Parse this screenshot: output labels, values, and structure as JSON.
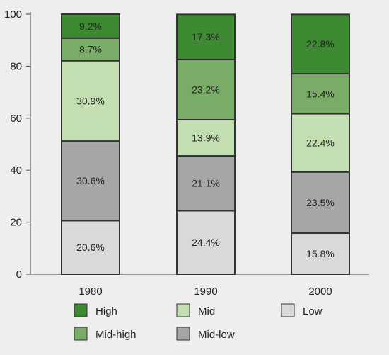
{
  "chart_data": {
    "type": "bar",
    "stacked": true,
    "categories": [
      "1980",
      "1990",
      "2000"
    ],
    "series": [
      {
        "name": "Low",
        "values": [
          20.6,
          24.4,
          15.8
        ],
        "labels": [
          "20.6%",
          "24.4%",
          "15.8%"
        ],
        "color": "#d9d9d9"
      },
      {
        "name": "Mid-low",
        "values": [
          30.6,
          21.1,
          23.5
        ],
        "labels": [
          "30.6%",
          "21.1%",
          "23.5%"
        ],
        "color": "#a6a6a6"
      },
      {
        "name": "Mid",
        "values": [
          30.9,
          13.9,
          22.4
        ],
        "labels": [
          "30.9%",
          "13.9%",
          "22.4%"
        ],
        "color": "#c3dfb1"
      },
      {
        "name": "Mid-high",
        "values": [
          8.7,
          23.2,
          15.4
        ],
        "labels": [
          "8.7%",
          "23.2%",
          "15.4%"
        ],
        "color": "#79ac66"
      },
      {
        "name": "High",
        "values": [
          9.2,
          17.3,
          22.8
        ],
        "labels": [
          "9.2%",
          "17.3%",
          "22.8%"
        ],
        "color": "#3e8a32"
      }
    ],
    "ylim": [
      0,
      100
    ],
    "yticks": [
      "0",
      "20",
      "40",
      "60",
      "80",
      "100"
    ],
    "grid": false,
    "legend": {
      "position": "bottom",
      "rows": [
        [
          "High",
          "Mid",
          "Low"
        ],
        [
          "Mid-high",
          "Mid-low"
        ]
      ]
    }
  }
}
